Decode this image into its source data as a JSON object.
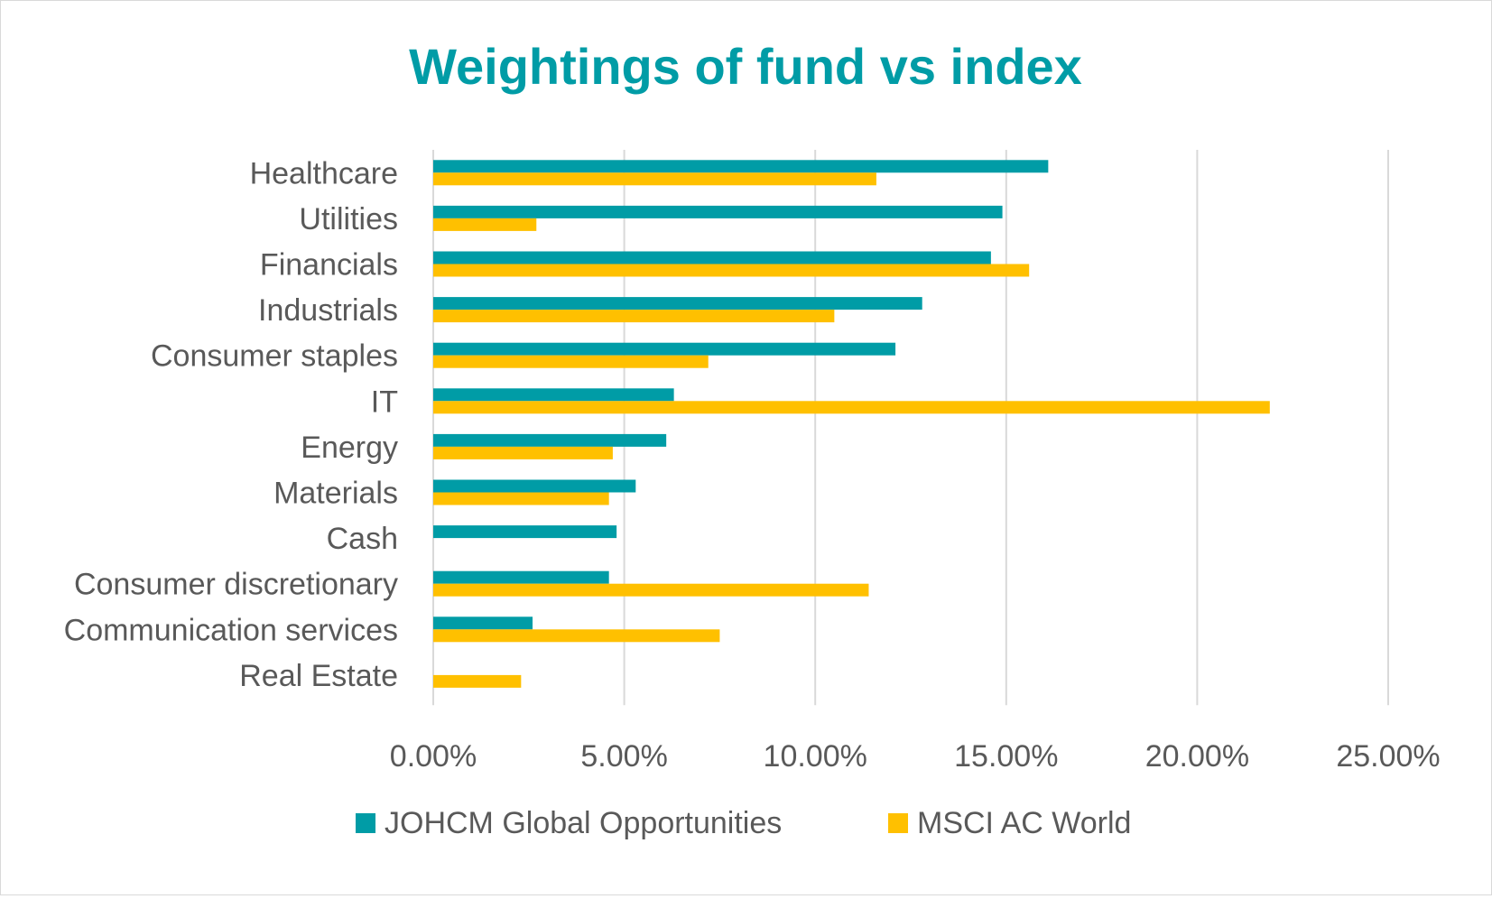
{
  "chart_data": {
    "type": "bar",
    "orientation": "horizontal",
    "title": "Weightings of fund vs index",
    "xlabel": "",
    "ylabel": "",
    "xlim": [
      0,
      25
    ],
    "x_ticks": [
      0,
      5,
      10,
      15,
      20,
      25
    ],
    "x_tick_labels": [
      "0.00%",
      "5.00%",
      "10.00%",
      "15.00%",
      "20.00%",
      "25.00%"
    ],
    "grid": "vertical",
    "legend": "bottom",
    "categories": [
      "Healthcare",
      "Utilities",
      "Financials",
      "Industrials",
      "Consumer staples",
      "IT",
      "Energy",
      "Materials",
      "Cash",
      "Consumer discretionary",
      "Communication services",
      "Real Estate"
    ],
    "series": [
      {
        "name": "JOHCM Global Opportunities",
        "color": "#009ca6",
        "values": [
          16.1,
          14.9,
          14.6,
          12.8,
          12.1,
          6.3,
          6.1,
          5.3,
          4.8,
          4.6,
          2.6,
          0.0
        ]
      },
      {
        "name": "MSCI AC World",
        "color": "#ffc000",
        "values": [
          11.6,
          2.7,
          15.6,
          10.5,
          7.2,
          21.9,
          4.7,
          4.6,
          0.0,
          11.4,
          7.5,
          2.3
        ]
      }
    ],
    "colors": {
      "title": "#009ca6",
      "axis_text": "#595959",
      "grid": "#d9d9d9"
    }
  }
}
